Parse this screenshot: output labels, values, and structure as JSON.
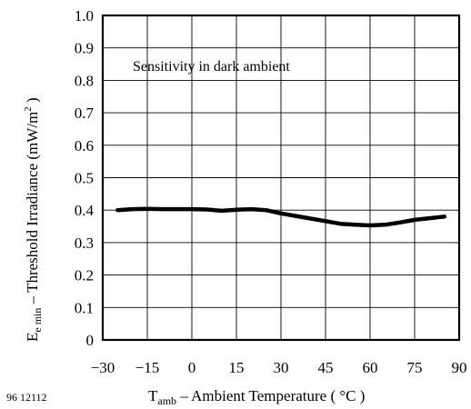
{
  "chart_data": {
    "type": "line",
    "annotation": "Sensitivity in dark ambient",
    "xlabel": {
      "main": "T",
      "sub": "amb",
      "rest": " – Ambient Temperature ( °C )"
    },
    "ylabel": {
      "main": "E",
      "sub": "e min",
      "rest": "  –  Threshold Irradiance (mW/m",
      "sup": "2",
      "close": " )"
    },
    "figure_id": "96 12112",
    "xlim": [
      -30,
      90
    ],
    "ylim": [
      0,
      1.0
    ],
    "x_ticks": [
      -30,
      -15,
      0,
      15,
      30,
      45,
      60,
      75,
      90
    ],
    "x_tick_labels": [
      "−30",
      "−15",
      "0",
      "15",
      "30",
      "45",
      "60",
      "75",
      "90"
    ],
    "y_ticks": [
      0,
      0.1,
      0.2,
      0.3,
      0.4,
      0.5,
      0.6,
      0.7,
      0.8,
      0.9,
      1.0
    ],
    "y_tick_labels": [
      "0",
      "0.1",
      "0.2",
      "0.3",
      "0.4",
      "0.5",
      "0.6",
      "0.7",
      "0.8",
      "0.9",
      "1.0"
    ],
    "grid": true,
    "legend": "none",
    "series": [
      {
        "x": [
          -25,
          -20,
          -15,
          -10,
          -5,
          0,
          5,
          10,
          15,
          20,
          25,
          30,
          35,
          40,
          45,
          50,
          55,
          60,
          65,
          70,
          75,
          80,
          85
        ],
        "y": [
          0.4,
          0.403,
          0.404,
          0.403,
          0.403,
          0.403,
          0.402,
          0.398,
          0.401,
          0.403,
          0.4,
          0.39,
          0.382,
          0.374,
          0.366,
          0.358,
          0.355,
          0.353,
          0.355,
          0.362,
          0.37,
          0.375,
          0.38
        ]
      }
    ]
  }
}
